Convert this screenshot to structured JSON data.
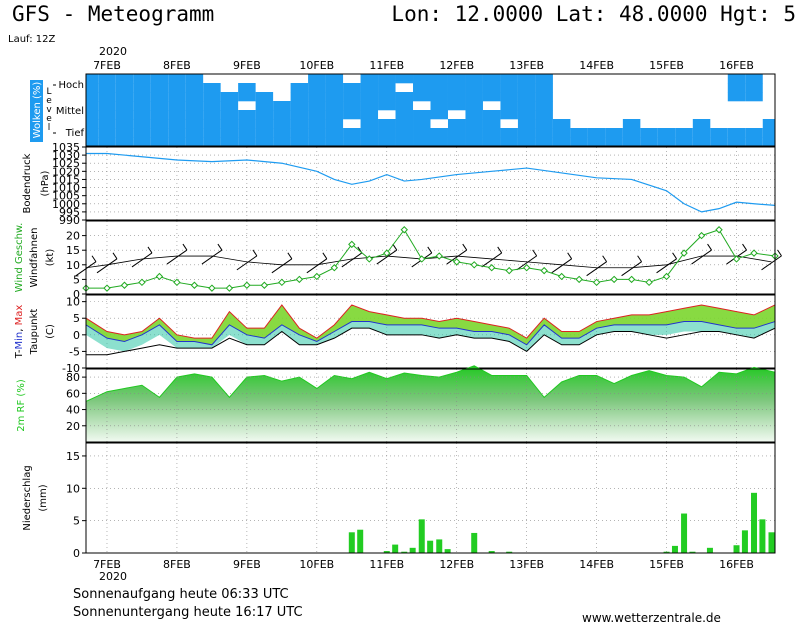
{
  "header": {
    "title": "GFS - Meteogramm",
    "location": "Lon: 12.0000  Lat: 48.0000  Hgt: 5",
    "run": "Lauf: 12Z"
  },
  "footer": {
    "sunrise": "Sonnenaufgang heute 06:33 UTC",
    "sunset": "Sonnenuntergang heute 16:17 UTC",
    "source": "www.wetterzentrale.de"
  },
  "time_axis": {
    "year": "2020",
    "dates": [
      "7FEB",
      "8FEB",
      "9FEB",
      "10FEB",
      "11FEB",
      "12FEB",
      "13FEB",
      "14FEB",
      "15FEB",
      "16FEB"
    ],
    "x_range_days": [
      6.7,
      16.55
    ]
  },
  "chart_data": [
    {
      "type": "heatmap",
      "panel": "clouds",
      "ylabel": "Wolken (%)",
      "level_label": "Level",
      "levels": [
        "Hoch",
        "Mittel",
        "Tief"
      ],
      "color": "#1E9BF0",
      "note_levels_order": "rows high to low, 0 = clear, 1 = cloudy",
      "times": [
        6.75,
        7.0,
        7.25,
        7.5,
        7.75,
        8.0,
        8.25,
        8.5,
        8.75,
        9.0,
        9.25,
        9.5,
        9.75,
        10.0,
        10.25,
        10.5,
        10.75,
        11.0,
        11.25,
        11.5,
        11.75,
        12.0,
        12.25,
        12.5,
        12.75,
        13.0,
        13.25,
        13.5,
        13.75,
        14.0,
        14.25,
        14.5,
        14.75,
        15.0,
        15.25,
        15.5,
        15.75,
        16.0,
        16.25,
        16.5
      ],
      "rows": [
        [
          1,
          1,
          1,
          1,
          1,
          1,
          1,
          0,
          0,
          0,
          0,
          0,
          0,
          1,
          1,
          0,
          1,
          1,
          1,
          1,
          1,
          1,
          1,
          1,
          1,
          1,
          1,
          0,
          0,
          0,
          0,
          0,
          0,
          0,
          0,
          0,
          0,
          1,
          1,
          0
        ],
        [
          1,
          1,
          1,
          1,
          1,
          1,
          1,
          1,
          0,
          1,
          0,
          0,
          1,
          1,
          1,
          1,
          1,
          1,
          0,
          1,
          1,
          1,
          1,
          1,
          1,
          1,
          1,
          0,
          0,
          0,
          0,
          0,
          0,
          0,
          0,
          0,
          0,
          1,
          1,
          0
        ],
        [
          1,
          1,
          1,
          1,
          1,
          1,
          1,
          1,
          1,
          1,
          1,
          0,
          1,
          1,
          1,
          1,
          1,
          1,
          1,
          1,
          1,
          1,
          1,
          1,
          1,
          1,
          1,
          0,
          0,
          0,
          0,
          0,
          0,
          0,
          0,
          0,
          0,
          1,
          1,
          0
        ],
        [
          1,
          1,
          1,
          1,
          1,
          1,
          1,
          1,
          1,
          0,
          1,
          1,
          1,
          1,
          1,
          1,
          1,
          1,
          1,
          0,
          1,
          1,
          1,
          0,
          1,
          1,
          1,
          0,
          0,
          0,
          0,
          0,
          0,
          0,
          0,
          0,
          0,
          0,
          0,
          0
        ],
        [
          1,
          1,
          1,
          1,
          1,
          1,
          1,
          1,
          1,
          1,
          1,
          1,
          1,
          1,
          1,
          1,
          1,
          0,
          1,
          1,
          1,
          0,
          1,
          1,
          1,
          1,
          1,
          0,
          0,
          0,
          0,
          0,
          0,
          0,
          0,
          0,
          0,
          0,
          0,
          0
        ],
        [
          1,
          1,
          1,
          1,
          1,
          1,
          1,
          1,
          1,
          1,
          1,
          1,
          1,
          1,
          1,
          0,
          1,
          1,
          1,
          1,
          0,
          1,
          1,
          1,
          0,
          1,
          1,
          1,
          0,
          0,
          0,
          1,
          0,
          0,
          0,
          1,
          0,
          0,
          0,
          1
        ],
        [
          1,
          1,
          1,
          1,
          1,
          1,
          1,
          1,
          1,
          1,
          1,
          1,
          1,
          1,
          1,
          1,
          1,
          1,
          1,
          1,
          1,
          1,
          1,
          1,
          1,
          1,
          1,
          1,
          1,
          1,
          1,
          1,
          1,
          1,
          1,
          1,
          1,
          1,
          1,
          1
        ],
        [
          1,
          1,
          1,
          1,
          1,
          1,
          1,
          1,
          1,
          1,
          1,
          1,
          1,
          1,
          1,
          1,
          1,
          1,
          1,
          1,
          1,
          1,
          1,
          1,
          1,
          1,
          1,
          1,
          1,
          1,
          1,
          1,
          1,
          1,
          1,
          1,
          1,
          1,
          1,
          1
        ]
      ]
    },
    {
      "type": "line",
      "panel": "pressure",
      "ylabel": "Bodendruck (hPa)",
      "ylim": [
        990,
        1035
      ],
      "yticks": [
        990,
        995,
        1000,
        1005,
        1010,
        1015,
        1020,
        1025,
        1030,
        1035
      ],
      "color": "#1E9BF0",
      "x": [
        6.7,
        7.0,
        7.5,
        8.0,
        8.5,
        9.0,
        9.5,
        10.0,
        10.25,
        10.5,
        10.75,
        11.0,
        11.25,
        11.5,
        12.0,
        12.5,
        13.0,
        13.5,
        14.0,
        14.5,
        15.0,
        15.25,
        15.5,
        15.75,
        16.0,
        16.25,
        16.55
      ],
      "values": [
        1031,
        1031,
        1029,
        1027,
        1026,
        1027,
        1025,
        1020,
        1015,
        1012,
        1014,
        1018,
        1014,
        1015,
        1018,
        1020,
        1022,
        1019,
        1016,
        1015,
        1008,
        1000,
        995,
        997,
        1001,
        1000,
        999
      ]
    },
    {
      "type": "line",
      "panel": "wind",
      "ylabel": "Wind Geschw. (kt)",
      "ylabel2": "Windfahnen",
      "ylim": [
        0,
        25
      ],
      "yticks": [
        0,
        5,
        10,
        15,
        20
      ],
      "series": [
        {
          "name": "Wind Geschw.",
          "color": "#22AA22",
          "x": [
            6.7,
            7.0,
            7.25,
            7.5,
            7.75,
            8.0,
            8.25,
            8.5,
            8.75,
            9.0,
            9.25,
            9.5,
            9.75,
            10.0,
            10.25,
            10.5,
            10.75,
            11.0,
            11.25,
            11.5,
            11.75,
            12.0,
            12.25,
            12.5,
            12.75,
            13.0,
            13.25,
            13.5,
            13.75,
            14.0,
            14.25,
            14.5,
            14.75,
            15.0,
            15.25,
            15.5,
            15.75,
            16.0,
            16.25,
            16.55
          ],
          "values": [
            2,
            2,
            3,
            4,
            6,
            4,
            3,
            2,
            2,
            3,
            3,
            4,
            5,
            6,
            9,
            17,
            12,
            14,
            22,
            12,
            13,
            11,
            10,
            9,
            8,
            9,
            8,
            6,
            5,
            4,
            5,
            5,
            4,
            6,
            14,
            20,
            22,
            12,
            14,
            13
          ]
        },
        {
          "name": "Windfahnen",
          "color": "#000000",
          "x": [
            6.7,
            7.0,
            7.5,
            8.0,
            8.5,
            9.0,
            9.5,
            10.0,
            10.5,
            11.0,
            11.5,
            12.0,
            12.5,
            13.0,
            13.5,
            14.0,
            14.5,
            15.0,
            15.5,
            16.0,
            16.5
          ],
          "values": [
            9,
            10,
            12,
            13,
            13,
            11,
            10,
            10,
            12,
            13,
            12,
            13,
            12,
            11,
            10,
            9,
            9,
            10,
            13,
            13,
            11
          ]
        }
      ]
    },
    {
      "type": "area",
      "panel": "temperature",
      "ylabel": "T-Min, Max (C)",
      "ylabel2": "Taupunkt",
      "ylim": [
        -10,
        12
      ],
      "yticks": [
        -10,
        -5,
        0,
        5,
        10
      ],
      "x": [
        6.7,
        7.0,
        7.25,
        7.5,
        7.75,
        8.0,
        8.25,
        8.5,
        8.75,
        9.0,
        9.25,
        9.5,
        9.75,
        10.0,
        10.25,
        10.5,
        10.75,
        11.0,
        11.25,
        11.5,
        11.75,
        12.0,
        12.25,
        12.5,
        12.75,
        13.0,
        13.25,
        13.5,
        13.75,
        14.0,
        14.25,
        14.5,
        14.75,
        15.0,
        15.25,
        15.5,
        15.75,
        16.0,
        16.25,
        16.55
      ],
      "series": [
        {
          "name": "Max",
          "color": "#DD2222",
          "values": [
            5,
            1,
            0,
            1,
            5,
            0,
            -1,
            -1,
            7,
            2,
            2,
            9,
            2,
            -1,
            3,
            9,
            7,
            6,
            5,
            5,
            4,
            5,
            4,
            3,
            2,
            -1,
            5,
            1,
            1,
            4,
            5,
            6,
            6,
            7,
            8,
            9,
            8,
            7,
            6,
            9
          ]
        },
        {
          "name": "Min",
          "color": "#2233CC",
          "values": [
            3,
            -1,
            -2,
            0,
            3,
            -2,
            -2,
            -3,
            3,
            0,
            -1,
            3,
            0,
            -2,
            1,
            4,
            4,
            3,
            3,
            3,
            2,
            2,
            1,
            1,
            0,
            -3,
            3,
            -1,
            -1,
            2,
            3,
            3,
            3,
            3,
            4,
            4,
            3,
            2,
            2,
            4
          ]
        },
        {
          "name": "Taupunkt",
          "color": "#000000",
          "values": [
            -6,
            -6,
            -5,
            -4,
            -3,
            -4,
            -4,
            -4,
            -1,
            -3,
            -3,
            1,
            -3,
            -3,
            -1,
            2,
            2,
            0,
            0,
            0,
            -1,
            0,
            -1,
            -1,
            -2,
            -5,
            0,
            -3,
            -3,
            0,
            1,
            1,
            0,
            -1,
            0,
            1,
            1,
            0,
            -1,
            2
          ]
        }
      ]
    },
    {
      "type": "area",
      "panel": "humidity",
      "ylabel": "2m RF (%)",
      "ylim": [
        0,
        90
      ],
      "yticks": [
        20,
        40,
        60,
        80
      ],
      "color": "#22C822",
      "x": [
        6.7,
        7.0,
        7.25,
        7.5,
        7.75,
        8.0,
        8.25,
        8.5,
        8.75,
        9.0,
        9.25,
        9.5,
        9.75,
        10.0,
        10.25,
        10.5,
        10.75,
        11.0,
        11.25,
        11.5,
        11.75,
        12.0,
        12.25,
        12.5,
        12.75,
        13.0,
        13.25,
        13.5,
        13.75,
        14.0,
        14.25,
        14.5,
        14.75,
        15.0,
        15.25,
        15.5,
        15.75,
        16.0,
        16.25,
        16.55
      ],
      "values": [
        50,
        62,
        66,
        70,
        55,
        80,
        84,
        80,
        55,
        80,
        82,
        75,
        80,
        66,
        82,
        78,
        86,
        78,
        85,
        82,
        80,
        86,
        94,
        82,
        82,
        82,
        55,
        74,
        82,
        82,
        72,
        82,
        88,
        82,
        80,
        68,
        86,
        84,
        92,
        86
      ]
    },
    {
      "type": "bar",
      "panel": "precipitation",
      "ylabel": "Niederschlag (mm)",
      "ylim": [
        0,
        17
      ],
      "yticks": [
        0,
        5,
        10,
        15
      ],
      "color": "#22CC22",
      "x": [
        10.5,
        10.62,
        11.0,
        11.12,
        11.25,
        11.37,
        11.5,
        11.62,
        11.75,
        11.87,
        12.25,
        12.5,
        12.75,
        15.0,
        15.12,
        15.25,
        15.37,
        15.62,
        16.0,
        16.12,
        16.25,
        16.37,
        16.5
      ],
      "values": [
        3.2,
        3.6,
        0.3,
        1.3,
        0.2,
        0.8,
        5.2,
        1.9,
        2.1,
        0.6,
        3.1,
        0.3,
        0.2,
        0.2,
        1.1,
        6.1,
        0.2,
        0.8,
        1.2,
        3.5,
        9.3,
        5.2,
        3.2
      ]
    }
  ]
}
